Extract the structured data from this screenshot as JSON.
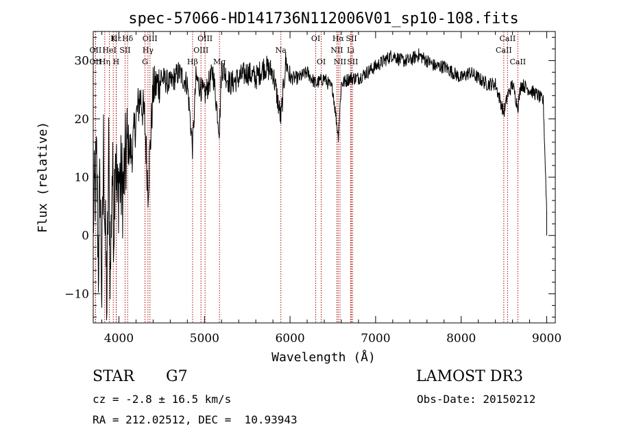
{
  "chart_data": {
    "type": "line",
    "title": "spec-57066-HD141736N112006V01_sp10-108.fits",
    "xlabel": "Wavelength (Å)",
    "ylabel": "Flux (relative)",
    "xlim": [
      3700,
      9100
    ],
    "ylim": [
      -15,
      35
    ],
    "xticks": [
      4000,
      5000,
      6000,
      7000,
      8000,
      9000
    ],
    "yticks": [
      -10,
      0,
      10,
      20,
      30
    ],
    "grid": false,
    "series": [
      {
        "name": "flux",
        "x": [
          3700,
          3740,
          3760,
          3780,
          3800,
          3820,
          3840,
          3860,
          3880,
          3900,
          3920,
          3940,
          3960,
          3980,
          4000,
          4050,
          4100,
          4150,
          4200,
          4250,
          4300,
          4340,
          4400,
          4500,
          4600,
          4700,
          4800,
          4861,
          4900,
          5000,
          5100,
          5175,
          5200,
          5300,
          5400,
          5500,
          5600,
          5700,
          5800,
          5893,
          5950,
          6000,
          6100,
          6200,
          6300,
          6400,
          6500,
          6563,
          6600,
          6700,
          6800,
          6900,
          7000,
          7100,
          7200,
          7300,
          7400,
          7500,
          7600,
          7700,
          7800,
          7900,
          8000,
          8100,
          8200,
          8300,
          8400,
          8498,
          8542,
          8600,
          8662,
          8700,
          8800,
          8900,
          8960,
          9000
        ],
        "y": [
          3,
          12,
          -5,
          10,
          -10,
          15,
          0,
          -12,
          14,
          -8,
          12,
          2,
          18,
          5,
          10,
          8,
          16,
          14,
          20,
          24,
          20,
          8,
          25,
          27,
          26,
          28,
          26,
          15,
          27,
          24,
          28,
          18,
          29,
          26,
          27,
          28,
          27,
          29,
          28,
          20,
          30,
          27,
          27,
          28,
          26,
          27,
          25,
          17,
          26,
          27,
          27,
          28,
          29,
          30,
          31,
          30,
          30,
          31,
          30,
          29,
          29,
          28,
          27,
          28,
          27,
          26,
          26,
          21,
          24,
          26,
          22,
          26,
          25,
          24,
          23,
          4
        ]
      }
    ],
    "lines": [
      {
        "label": "Hε",
        "wl": 3970,
        "row": 0
      },
      {
        "label": "K",
        "wl": 3934,
        "row": 0
      },
      {
        "label": "Hδ",
        "wl": 4102,
        "row": 0
      },
      {
        "label": "OII",
        "wl": 3727,
        "row": 1
      },
      {
        "label": "HeI",
        "wl": 3889,
        "row": 1
      },
      {
        "label": "SII",
        "wl": 4072,
        "row": 1
      },
      {
        "label": "OII",
        "wl": 3727,
        "row": 2
      },
      {
        "label": "Hη",
        "wl": 3835,
        "row": 2
      },
      {
        "label": "H",
        "wl": 3968,
        "row": 2
      },
      {
        "label": "OIII",
        "wl": 4363,
        "row": 0
      },
      {
        "label": "Hγ",
        "wl": 4340,
        "row": 1
      },
      {
        "label": "G",
        "wl": 4305,
        "row": 2
      },
      {
        "label": "OIII",
        "wl": 5007,
        "row": 0
      },
      {
        "label": "OIII",
        "wl": 4959,
        "row": 1
      },
      {
        "label": "Hβ",
        "wl": 4861,
        "row": 2
      },
      {
        "label": "Mg",
        "wl": 5175,
        "row": 2
      },
      {
        "label": "Na",
        "wl": 5893,
        "row": 1
      },
      {
        "label": "OI",
        "wl": 6300,
        "row": 0
      },
      {
        "label": "OI",
        "wl": 6364,
        "row": 2
      },
      {
        "label": "Hα",
        "wl": 6563,
        "row": 0
      },
      {
        "label": "SII",
        "wl": 6717,
        "row": 0
      },
      {
        "label": "NII",
        "wl": 6548,
        "row": 1
      },
      {
        "label": "Li",
        "wl": 6708,
        "row": 1
      },
      {
        "label": "NII",
        "wl": 6584,
        "row": 2
      },
      {
        "label": "SII",
        "wl": 6731,
        "row": 2
      },
      {
        "label": "CaII",
        "wl": 8542,
        "row": 0
      },
      {
        "label": "CaII",
        "wl": 8498,
        "row": 1
      },
      {
        "label": "CaII",
        "wl": 8662,
        "row": 2
      }
    ],
    "line_color": "#aa0000"
  },
  "footer": {
    "type_label": "STAR",
    "subclass": "G7",
    "survey": "LAMOST DR3",
    "cz": "cz = -2.8 ± 16.5 km/s",
    "obs_date": "Obs-Date: 20150212",
    "coords": "RA = 212.02512, DEC =  10.93943"
  }
}
